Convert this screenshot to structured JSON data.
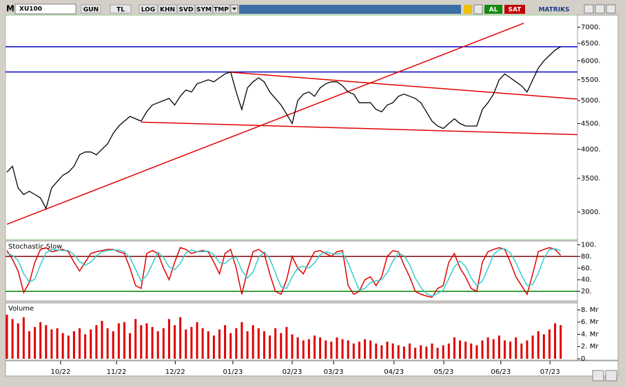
{
  "toolbar": {
    "prefix": "M",
    "symbol": "XU100",
    "buttons": [
      "GUN",
      "TL",
      "LOG",
      "KHN",
      "SVD",
      "SYM",
      "TMP"
    ],
    "buy": "AL",
    "sell": "SAT",
    "brand": "MATRIKS"
  },
  "chart_data": [
    {
      "type": "line",
      "log": true,
      "color": "#000000",
      "xlim": [
        0,
        102
      ],
      "ylim": [
        2660,
        7350
      ],
      "yticks": [
        {
          "value": 3000,
          "label": "3000."
        },
        {
          "value": 3500,
          "label": "3500."
        },
        {
          "value": 4000,
          "label": "4000."
        },
        {
          "value": 4500,
          "label": "4500."
        },
        {
          "value": 5000,
          "label": "5000."
        },
        {
          "value": 5500,
          "label": "5500."
        },
        {
          "value": 6000,
          "label": "6000."
        },
        {
          "value": 6500,
          "label": "6500."
        },
        {
          "value": 7000,
          "label": "7000."
        }
      ],
      "values": [
        3600,
        3700,
        3350,
        3250,
        3300,
        3250,
        3200,
        3050,
        3350,
        3450,
        3550,
        3600,
        3700,
        3900,
        3950,
        3950,
        3900,
        4000,
        4100,
        4300,
        4450,
        4550,
        4650,
        4600,
        4550,
        4750,
        4900,
        4950,
        5000,
        5050,
        4900,
        5100,
        5250,
        5200,
        5400,
        5450,
        5500,
        5450,
        5550,
        5650,
        5700,
        5200,
        4800,
        5300,
        5450,
        5550,
        5450,
        5200,
        5050,
        4900,
        4700,
        4500,
        5000,
        5150,
        5200,
        5100,
        5300,
        5400,
        5450,
        5450,
        5350,
        5200,
        5150,
        4950,
        4950,
        4950,
        4800,
        4750,
        4900,
        4950,
        5100,
        5150,
        5100,
        5050,
        4950,
        4750,
        4550,
        4450,
        4400,
        4500,
        4600,
        4500,
        4450,
        4450,
        4450,
        4800,
        4950,
        5150,
        5500,
        5650,
        5550,
        5450,
        5350,
        5200,
        5500,
        5800,
        6000,
        6150,
        6300,
        6400
      ],
      "hlines": [
        {
          "value": 6400,
          "color": "#0000c0"
        },
        {
          "value": 5700,
          "color": "#0000c0"
        }
      ],
      "trendlines": [
        {
          "color": "#e00000",
          "x": [
            0,
            92.4
          ],
          "y": [
            2836,
            7128
          ]
        },
        {
          "color": "#e00000",
          "x": [
            39.4,
            102
          ],
          "y": [
            5700,
            5035
          ]
        },
        {
          "color": "#e00000",
          "x": [
            24,
            102
          ],
          "y": [
            4530,
            4277
          ]
        }
      ]
    },
    {
      "type": "line",
      "title": "Stochastic,Slow",
      "xlim": [
        0,
        102
      ],
      "ylim": [
        6,
        104
      ],
      "yticks": [
        {
          "value": 100,
          "label": "100."
        },
        {
          "value": 80,
          "label": "80."
        },
        {
          "value": 60,
          "label": "60."
        },
        {
          "value": 40,
          "label": "40."
        },
        {
          "value": 20,
          "label": "20."
        }
      ],
      "hlines": [
        {
          "value": 80,
          "color": "#800000"
        },
        {
          "value": 20,
          "color": "#008000"
        }
      ],
      "series": [
        {
          "color": "#e00000",
          "values": [
            90,
            75,
            55,
            18,
            35,
            70,
            92,
            95,
            88,
            90,
            92,
            88,
            70,
            55,
            70,
            85,
            88,
            90,
            92,
            92,
            88,
            85,
            60,
            30,
            25,
            85,
            90,
            85,
            60,
            40,
            70,
            95,
            92,
            85,
            88,
            90,
            88,
            70,
            50,
            85,
            92,
            60,
            15,
            55,
            88,
            92,
            85,
            50,
            20,
            15,
            40,
            80,
            60,
            50,
            70,
            88,
            90,
            85,
            80,
            88,
            90,
            30,
            15,
            20,
            40,
            45,
            30,
            45,
            80,
            90,
            88,
            65,
            45,
            20,
            15,
            12,
            10,
            25,
            30,
            70,
            85,
            60,
            45,
            25,
            20,
            70,
            88,
            92,
            95,
            92,
            70,
            45,
            30,
            15,
            50,
            88,
            92,
            95,
            92,
            82
          ]
        },
        {
          "color": "#33cccc",
          "values": [
            85,
            82,
            73,
            50,
            36,
            41,
            66,
            86,
            92,
            91,
            90,
            90,
            83,
            71,
            65,
            70,
            81,
            88,
            90,
            91,
            91,
            88,
            78,
            58,
            38,
            47,
            67,
            87,
            78,
            62,
            57,
            68,
            86,
            91,
            88,
            88,
            89,
            83,
            69,
            68,
            76,
            79,
            56,
            43,
            53,
            78,
            88,
            76,
            52,
            28,
            25,
            45,
            60,
            63,
            60,
            69,
            83,
            88,
            85,
            84,
            86,
            69,
            45,
            22,
            25,
            35,
            38,
            40,
            52,
            72,
            86,
            81,
            66,
            43,
            27,
            16,
            12,
            16,
            22,
            42,
            62,
            72,
            63,
            43,
            30,
            38,
            59,
            83,
            92,
            93,
            86,
            69,
            48,
            30,
            32,
            51,
            77,
            92,
            93,
            90
          ]
        }
      ]
    },
    {
      "type": "bar",
      "title": "Volume",
      "color": "#e00000",
      "xlim": [
        0,
        102
      ],
      "ylim": [
        0,
        8.9
      ],
      "yticks": [
        {
          "value": 8,
          "label": "8. Mr"
        },
        {
          "value": 6,
          "label": "6. Mr"
        },
        {
          "value": 4,
          "label": "4. Mr"
        },
        {
          "value": 2,
          "label": "2. Mr"
        },
        0
      ],
      "xticks": [
        {
          "value": 9.6,
          "label": "10/22"
        },
        {
          "value": 19.6,
          "label": "11/22"
        },
        {
          "value": 30.1,
          "label": "12/22"
        },
        {
          "value": 40.4,
          "label": "01/23"
        },
        {
          "value": 51,
          "label": "02/23"
        },
        {
          "value": 58.4,
          "label": "03/23"
        },
        {
          "value": 69.2,
          "label": "04/23"
        },
        {
          "value": 78.1,
          "label": "05/23"
        },
        {
          "value": 88.3,
          "label": "06/23"
        },
        {
          "value": 97.1,
          "label": "07/23"
        }
      ],
      "values": [
        7.2,
        6.5,
        5.8,
        6.8,
        4.5,
        5.2,
        6.0,
        5.5,
        4.8,
        5.0,
        4.2,
        3.8,
        4.5,
        5.0,
        4.0,
        4.8,
        5.5,
        6.2,
        5.0,
        4.5,
        5.8,
        6.0,
        4.2,
        6.5,
        5.5,
        5.8,
        5.2,
        4.5,
        5.0,
        6.5,
        5.5,
        6.8,
        4.8,
        5.2,
        6.0,
        5.0,
        4.5,
        3.8,
        4.8,
        5.5,
        4.2,
        5.0,
        6.0,
        4.5,
        5.5,
        5.0,
        4.5,
        3.8,
        5.0,
        4.2,
        5.2,
        4.0,
        3.5,
        3.0,
        3.2,
        3.8,
        3.5,
        3.0,
        2.8,
        3.5,
        3.2,
        3.0,
        2.5,
        2.8,
        3.2,
        3.0,
        2.5,
        2.2,
        2.8,
        2.5,
        2.2,
        2.0,
        2.5,
        1.8,
        2.2,
        2.0,
        2.5,
        1.8,
        2.2,
        2.5,
        3.5,
        3.0,
        2.8,
        2.5,
        2.2,
        3.0,
        3.5,
        3.2,
        3.8,
        3.0,
        2.8,
        3.5,
        2.5,
        3.0,
        3.8,
        4.5,
        4.0,
        4.8,
        5.8,
        5.5
      ]
    }
  ]
}
